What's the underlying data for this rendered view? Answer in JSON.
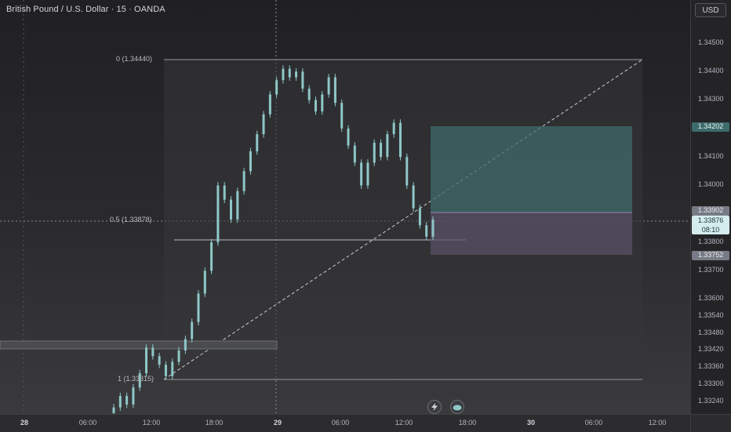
{
  "symbol": {
    "title": "British Pound / U.S. Dollar · 15 · OANDA"
  },
  "currency_button": {
    "label": "USD"
  },
  "price_scale": {
    "ticks": [
      "1.34500",
      "1.34400",
      "1.34300",
      "1.34100",
      "1.34000",
      "1.33800",
      "1.33700",
      "1.33600",
      "1.33540",
      "1.33480",
      "1.33420",
      "1.33360",
      "1.33300",
      "1.33240"
    ]
  },
  "time_scale": {
    "ticks": [
      "28",
      "06:00",
      "12:00",
      "18:00",
      "29",
      "06:00",
      "12:00",
      "18:00",
      "30",
      "06:00",
      "12:00"
    ]
  },
  "fib": {
    "level_0": "0 (1.34440)",
    "level_05": "0.5 (1.33878)",
    "level_1": "1 (1.33315)"
  },
  "position": {
    "target_price": "1.34202",
    "entry_price": "1.33902",
    "current_price": "1.33876",
    "countdown": "08:10",
    "stop_price": "1.33752"
  },
  "toolbar_icons": {
    "lightning": "lightning-icon",
    "cloud": "cloud-icon"
  },
  "colors": {
    "background": "#2a2a2d",
    "candle": "#8fc7c7",
    "target_zone": "#3d6b6b",
    "stop_zone": "#5a5065",
    "fib_zone": "#2f2f33"
  },
  "chart_data": {
    "type": "candlestick",
    "title": "British Pound / U.S. Dollar · 15 · OANDA",
    "x_ticks": [
      "28",
      "06:00",
      "12:00",
      "18:00",
      "29",
      "06:00",
      "12:00",
      "18:00",
      "30",
      "06:00",
      "12:00"
    ],
    "y_ticks": [
      1.345,
      1.344,
      1.343,
      1.341,
      1.34,
      1.338,
      1.337,
      1.336,
      1.3354,
      1.3348,
      1.3342,
      1.3336,
      1.333,
      1.3324
    ],
    "price_path": [
      [
        1.332,
        1.3322
      ],
      [
        1.3322,
        1.3326
      ],
      [
        1.3326,
        1.3323
      ],
      [
        1.3323,
        1.3329
      ],
      [
        1.3329,
        1.3334
      ],
      [
        1.3334,
        1.3343
      ],
      [
        1.3343,
        1.334
      ],
      [
        1.334,
        1.3337
      ],
      [
        1.3337,
        1.3333
      ],
      [
        1.3333,
        1.3338
      ],
      [
        1.3338,
        1.3342
      ],
      [
        1.3342,
        1.3346
      ],
      [
        1.3346,
        1.3352
      ],
      [
        1.3352,
        1.3362
      ],
      [
        1.3362,
        1.337
      ],
      [
        1.337,
        1.338
      ],
      [
        1.338,
        1.34
      ],
      [
        1.34,
        1.3395
      ],
      [
        1.3395,
        1.3388
      ],
      [
        1.3388,
        1.3398
      ],
      [
        1.3398,
        1.3405
      ],
      [
        1.3405,
        1.3412
      ],
      [
        1.3412,
        1.3418
      ],
      [
        1.3418,
        1.3425
      ],
      [
        1.3425,
        1.3432
      ],
      [
        1.3432,
        1.3437
      ],
      [
        1.3437,
        1.3441
      ],
      [
        1.3441,
        1.3438
      ],
      [
        1.3438,
        1.344
      ],
      [
        1.344,
        1.3434
      ],
      [
        1.3434,
        1.343
      ],
      [
        1.343,
        1.3426
      ],
      [
        1.3426,
        1.3432
      ],
      [
        1.3432,
        1.3438
      ],
      [
        1.3438,
        1.3429
      ],
      [
        1.3429,
        1.342
      ],
      [
        1.342,
        1.3414
      ],
      [
        1.3414,
        1.3408
      ],
      [
        1.3408,
        1.34
      ],
      [
        1.34,
        1.3408
      ],
      [
        1.3408,
        1.3415
      ],
      [
        1.3415,
        1.341
      ],
      [
        1.341,
        1.3418
      ],
      [
        1.3418,
        1.3422
      ],
      [
        1.3422,
        1.341
      ],
      [
        1.341,
        1.34
      ],
      [
        1.34,
        1.3392
      ],
      [
        1.3392,
        1.3386
      ],
      [
        1.3386,
        1.3382
      ],
      [
        1.3382,
        1.3388
      ]
    ],
    "fib_levels": {
      "0": 1.3444,
      "0.5": 1.33878,
      "1": 1.33315
    }
  }
}
